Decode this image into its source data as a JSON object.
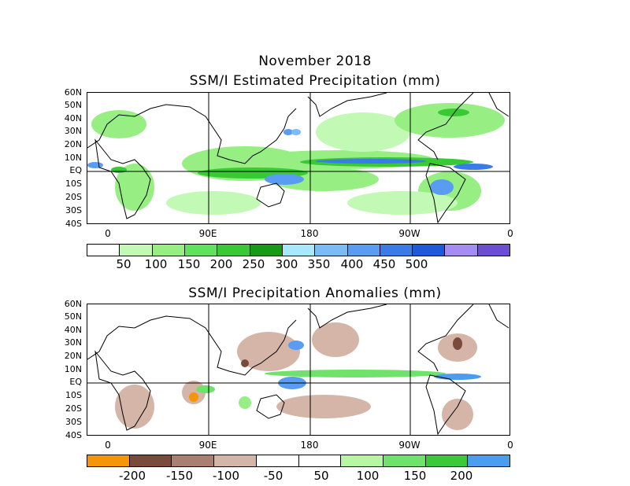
{
  "header": {
    "month": "November 2018"
  },
  "precip_map": {
    "title": "SSM/I Estimated Precipitation (mm)",
    "lat_labels": [
      "60N",
      "50N",
      "40N",
      "30N",
      "20N",
      "10N",
      "EQ",
      "10S",
      "20S",
      "30S",
      "40S"
    ],
    "lon_labels": [
      "0",
      "90E",
      "180",
      "90W",
      "0"
    ],
    "colorbar": {
      "colors": [
        "#ffffff",
        "#c2f9b4",
        "#97ef84",
        "#5fe25c",
        "#38c934",
        "#179a16",
        "#a6e8fc",
        "#7cbcf6",
        "#5a9cf2",
        "#3b7be8",
        "#1e59d8",
        "#a48cf2",
        "#6c4ed2"
      ],
      "labels": [
        "50",
        "100",
        "150",
        "200",
        "250",
        "300",
        "350",
        "400",
        "450",
        "500"
      ]
    }
  },
  "anomaly_map": {
    "title": "SSM/I Precipitation Anomalies (mm)",
    "lat_labels": [
      "60N",
      "50N",
      "40N",
      "30N",
      "20N",
      "10N",
      "EQ",
      "10S",
      "20S",
      "30S",
      "40S"
    ],
    "lon_labels": [
      "0",
      "90E",
      "180",
      "90W",
      "0"
    ],
    "colorbar": {
      "colors": [
        "#f5960a",
        "#7a4a3a",
        "#a87f70",
        "#d5b5a8",
        "#ffffff",
        "#ffffff",
        "#b6f7a4",
        "#6ee26a",
        "#3dc83a",
        "#4c9cf0"
      ],
      "labels": [
        "-200",
        "-150",
        "-100",
        "-50",
        "50",
        "100",
        "150",
        "200"
      ]
    }
  }
}
